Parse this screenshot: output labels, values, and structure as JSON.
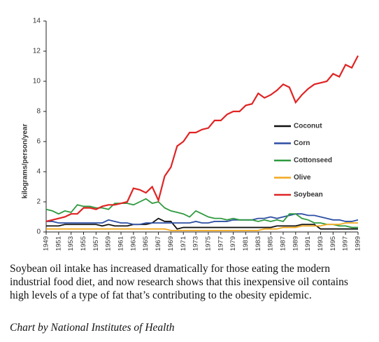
{
  "chart_data": {
    "type": "line",
    "y_label": "kilograms/person/year",
    "x": [
      1949,
      1950,
      1951,
      1952,
      1953,
      1954,
      1955,
      1956,
      1957,
      1958,
      1959,
      1960,
      1961,
      1962,
      1963,
      1964,
      1965,
      1966,
      1967,
      1968,
      1969,
      1970,
      1971,
      1972,
      1973,
      1974,
      1975,
      1976,
      1977,
      1978,
      1979,
      1980,
      1981,
      1982,
      1983,
      1984,
      1985,
      1986,
      1987,
      1988,
      1989,
      1990,
      1991,
      1992,
      1993,
      1994,
      1995,
      1996,
      1997,
      1998,
      1999
    ],
    "xlim": [
      1949,
      1999
    ],
    "xticks": [
      1949,
      1951,
      1953,
      1955,
      1957,
      1959,
      1961,
      1963,
      1965,
      1967,
      1969,
      1971,
      1973,
      1975,
      1977,
      1979,
      1981,
      1983,
      1985,
      1987,
      1989,
      1991,
      1993,
      1995,
      1997,
      1999
    ],
    "ylim": [
      0,
      14
    ],
    "yticks": [
      0,
      2,
      4,
      6,
      8,
      10,
      12,
      14
    ],
    "grid": false,
    "legend": "right",
    "series": [
      {
        "name": "Coconut",
        "color": "#111111",
        "values": [
          0.4,
          0.4,
          0.4,
          0.5,
          0.5,
          0.5,
          0.5,
          0.5,
          0.5,
          0.4,
          0.5,
          0.4,
          0.4,
          0.4,
          0.5,
          0.5,
          0.5,
          0.6,
          0.9,
          0.7,
          0.7,
          0.2,
          0.3,
          0.3,
          0.3,
          0.3,
          0.3,
          0.3,
          0.3,
          0.3,
          0.3,
          0.3,
          0.3,
          0.3,
          0.3,
          0.3,
          0.3,
          0.4,
          0.4,
          0.4,
          0.4,
          0.5,
          0.5,
          0.5,
          0.2,
          0.2,
          0.2,
          0.2,
          0.2,
          0.2,
          0.2
        ]
      },
      {
        "name": "Corn",
        "color": "#2d4fa3",
        "values": [
          0.7,
          0.7,
          0.6,
          0.6,
          0.6,
          0.6,
          0.6,
          0.6,
          0.6,
          0.6,
          0.8,
          0.7,
          0.6,
          0.6,
          0.5,
          0.5,
          0.6,
          0.6,
          0.6,
          0.6,
          0.6,
          0.6,
          0.6,
          0.6,
          0.7,
          0.6,
          0.6,
          0.7,
          0.7,
          0.7,
          0.8,
          0.8,
          0.8,
          0.8,
          0.9,
          0.9,
          1.0,
          0.9,
          1.0,
          1.1,
          1.2,
          1.2,
          1.1,
          1.1,
          1.0,
          0.9,
          0.8,
          0.8,
          0.7,
          0.7,
          0.8
        ]
      },
      {
        "name": "Cottonseed",
        "color": "#2e9a3e",
        "values": [
          1.5,
          1.4,
          1.2,
          1.4,
          1.3,
          1.8,
          1.7,
          1.7,
          1.6,
          1.6,
          1.5,
          1.9,
          1.9,
          1.9,
          1.8,
          2.0,
          2.2,
          1.9,
          2.0,
          1.6,
          1.4,
          1.3,
          1.2,
          1.0,
          1.4,
          1.2,
          1.0,
          0.9,
          0.9,
          0.8,
          0.9,
          0.8,
          0.8,
          0.8,
          0.7,
          0.8,
          0.7,
          0.8,
          0.7,
          1.2,
          1.2,
          0.9,
          0.8,
          0.6,
          0.6,
          0.5,
          0.5,
          0.4,
          0.4,
          0.3,
          0.3
        ]
      },
      {
        "name": "Olive",
        "color": "#f2a81d",
        "values": [
          0.2,
          0.2,
          0.2,
          0.2,
          0.2,
          0.2,
          0.2,
          0.2,
          0.2,
          0.2,
          0.2,
          0.2,
          0.2,
          0.2,
          0.2,
          0.2,
          0.2,
          0.2,
          0.2,
          0.2,
          0.1,
          0.1,
          0.1,
          0.1,
          0.1,
          0.1,
          0.1,
          0.1,
          0.1,
          0.1,
          0.1,
          0.1,
          0.1,
          0.1,
          0.1,
          0.2,
          0.2,
          0.2,
          0.3,
          0.3,
          0.3,
          0.4,
          0.4,
          0.4,
          0.4,
          0.5,
          0.5,
          0.5,
          0.6,
          0.6,
          0.6
        ]
      },
      {
        "name": "Soybean",
        "color": "#e02424",
        "values": [
          0.7,
          0.8,
          0.9,
          1.0,
          1.2,
          1.2,
          1.6,
          1.6,
          1.5,
          1.7,
          1.8,
          1.8,
          1.9,
          2.0,
          2.9,
          2.8,
          2.6,
          3.0,
          2.1,
          3.7,
          4.3,
          5.7,
          6.0,
          6.6,
          6.6,
          6.8,
          6.9,
          7.4,
          7.4,
          7.8,
          8.0,
          8.0,
          8.4,
          8.5,
          9.2,
          8.9,
          9.1,
          9.4,
          9.8,
          9.6,
          8.6,
          9.1,
          9.5,
          9.8,
          9.9,
          10.0,
          10.5,
          10.3,
          11.1,
          10.9,
          11.7
        ]
      }
    ]
  },
  "caption": "Soybean oil intake has increased dramatically for those eating the modern industrial food diet, and now research shows that this inexpensive oil contains high levels of a type of fat that’s contributing to the obesity epidemic.",
  "credit": "Chart by National Institutes of Health"
}
